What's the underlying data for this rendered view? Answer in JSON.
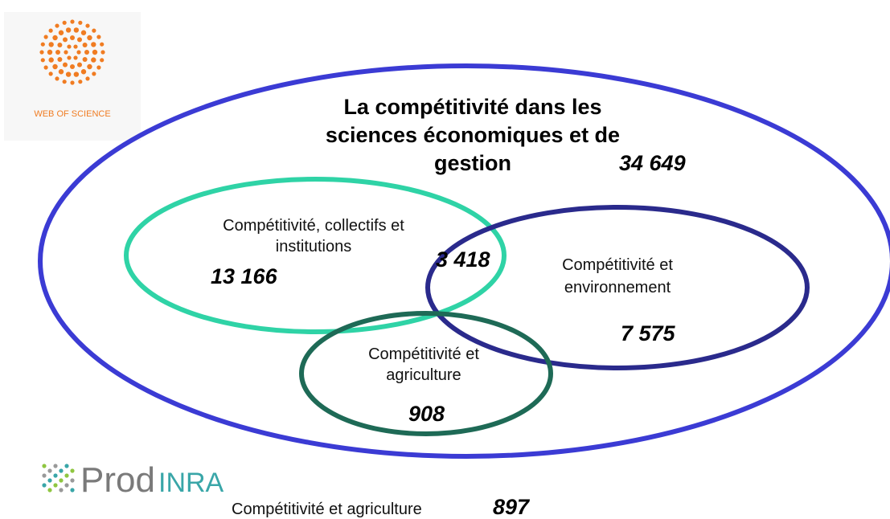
{
  "logos": {
    "web_of_science": "WEB OF SCIENCE",
    "prodinra": {
      "prod": "Prod",
      "inra": "INRA"
    }
  },
  "outer": {
    "title_lines": [
      "La compétitivité dans les",
      "sciences économiques et de",
      "gestion"
    ],
    "count": "34 649"
  },
  "sets": [
    {
      "label_lines": [
        "Compétitivité, collectifs et",
        "institutions"
      ],
      "count": "13 166"
    },
    {
      "label_lines": [
        "Compétitivité et",
        "environnement"
      ],
      "count": "7 575"
    },
    {
      "label_lines": [
        "Compétitivité et",
        "agriculture"
      ],
      "count": "908"
    }
  ],
  "intersection": {
    "count": "3 418"
  },
  "footer": {
    "label": "Compétitivité et agriculture",
    "count": "897"
  }
}
